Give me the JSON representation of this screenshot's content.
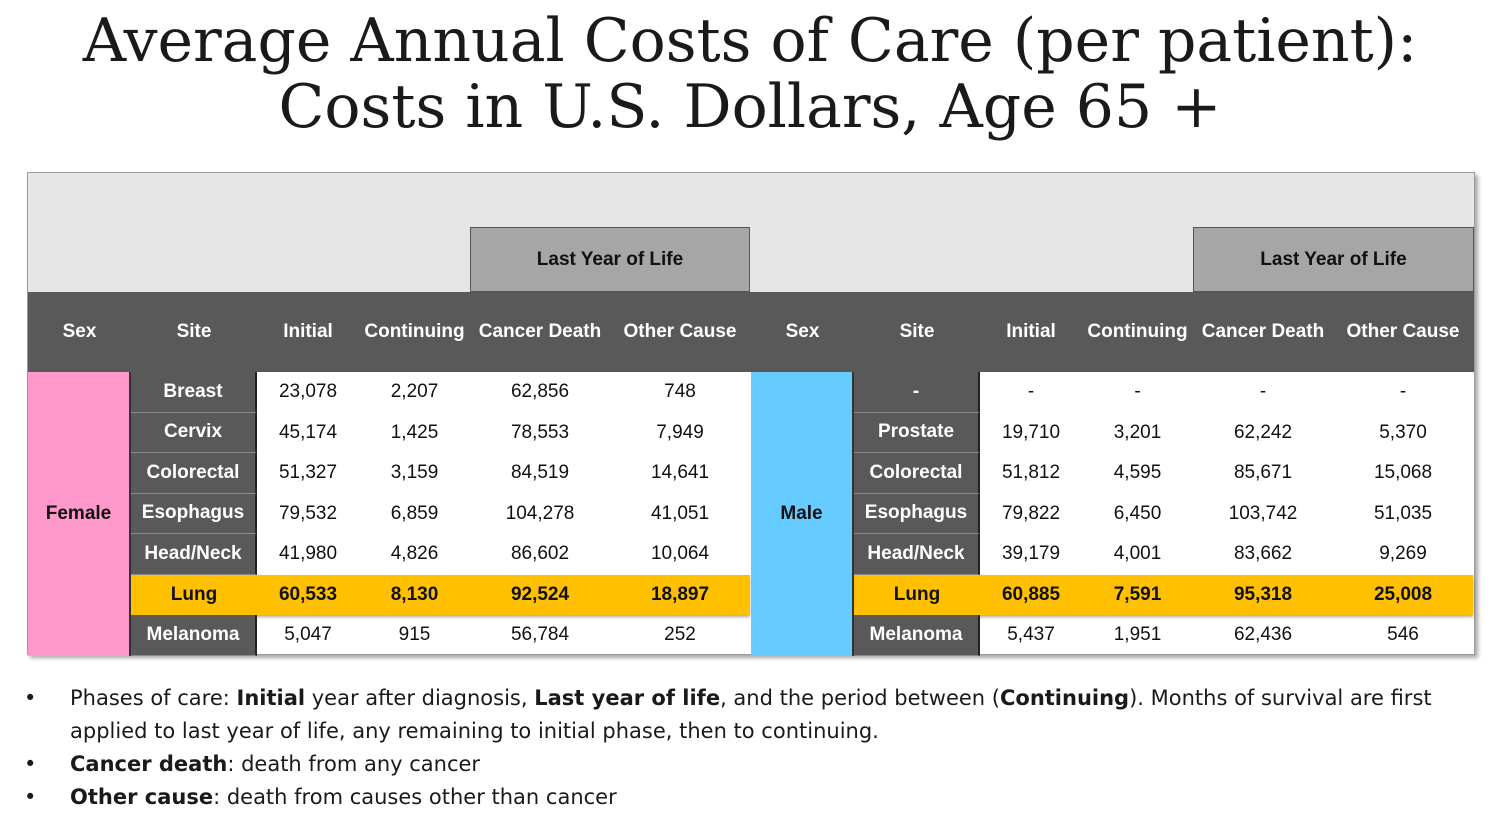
{
  "title": {
    "line1": "Average Annual Costs of Care (per patient):",
    "line2": "Costs in U.S. Dollars, Age 65 +"
  },
  "table": {
    "group_header": "Last Year of Life",
    "columns": [
      "Sex",
      "Site",
      "Initial",
      "Continuing",
      "Cancer Death",
      "Other Cause"
    ],
    "female": {
      "sex": "Female",
      "color": "#ff99cc",
      "rows": [
        {
          "site": "Breast",
          "initial": "23,078",
          "continuing": "2,207",
          "cancer_death": "62,856",
          "other_cause": "748"
        },
        {
          "site": "Cervix",
          "initial": "45,174",
          "continuing": "1,425",
          "cancer_death": "78,553",
          "other_cause": "7,949"
        },
        {
          "site": "Colorectal",
          "initial": "51,327",
          "continuing": "3,159",
          "cancer_death": "84,519",
          "other_cause": "14,641"
        },
        {
          "site": "Esophagus",
          "initial": "79,532",
          "continuing": "6,859",
          "cancer_death": "104,278",
          "other_cause": "41,051"
        },
        {
          "site": "Head/Neck",
          "initial": "41,980",
          "continuing": "4,826",
          "cancer_death": "86,602",
          "other_cause": "10,064"
        },
        {
          "site": "Lung",
          "initial": "60,533",
          "continuing": "8,130",
          "cancer_death": "92,524",
          "other_cause": "18,897"
        },
        {
          "site": "Melanoma",
          "initial": "5,047",
          "continuing": "915",
          "cancer_death": "56,784",
          "other_cause": "252"
        }
      ]
    },
    "male": {
      "sex": "Male",
      "color": "#66ccff",
      "rows": [
        {
          "site": "-",
          "initial": "-",
          "continuing": "-",
          "cancer_death": "-",
          "other_cause": "-"
        },
        {
          "site": "Prostate",
          "initial": "19,710",
          "continuing": "3,201",
          "cancer_death": "62,242",
          "other_cause": "5,370"
        },
        {
          "site": "Colorectal",
          "initial": "51,812",
          "continuing": "4,595",
          "cancer_death": "85,671",
          "other_cause": "15,068"
        },
        {
          "site": "Esophagus",
          "initial": "79,822",
          "continuing": "6,450",
          "cancer_death": "103,742",
          "other_cause": "51,035"
        },
        {
          "site": "Head/Neck",
          "initial": "39,179",
          "continuing": "4,001",
          "cancer_death": "83,662",
          "other_cause": "9,269"
        },
        {
          "site": "Lung",
          "initial": "60,885",
          "continuing": "7,591",
          "cancer_death": "95,318",
          "other_cause": "25,008"
        },
        {
          "site": "Melanoma",
          "initial": "5,437",
          "continuing": "1,951",
          "cancer_death": "62,436",
          "other_cause": "546"
        }
      ]
    },
    "highlight_color": "#ffc000",
    "header_color": "#595959"
  },
  "notes": {
    "bullet": "•",
    "n1": {
      "a": "Phases of care:  ",
      "b1": "Initial",
      "c": " year after diagnosis, ",
      "b2": "Last year of life",
      "d": ", and the period between (",
      "b3": "Continuing",
      "e": "). Months of survival are first applied to last year of life, any remaining to initial phase, then to continuing."
    },
    "n2": {
      "b": "Cancer death",
      "rest": ": death from any cancer"
    },
    "n3": {
      "b": "Other cause",
      "rest": ": death from causes other than cancer"
    }
  }
}
